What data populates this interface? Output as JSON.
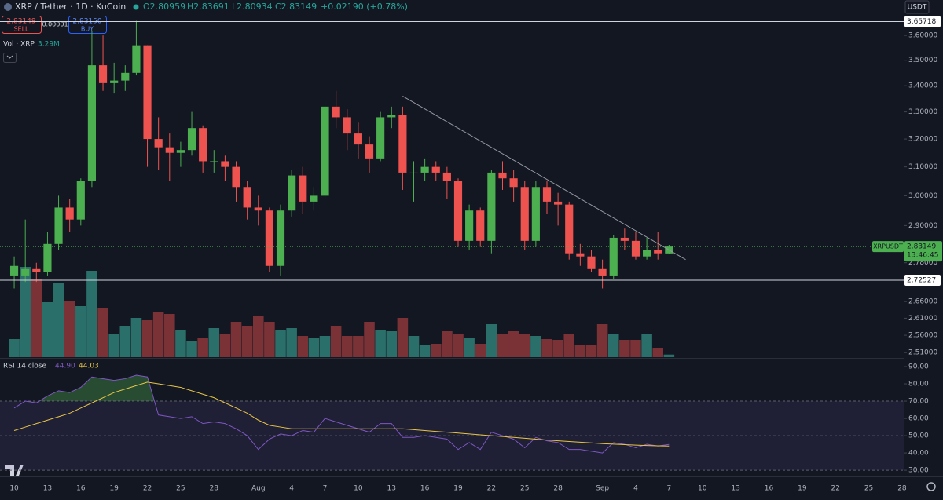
{
  "header": {
    "symbol": "XRP / Tether · 1D · KuCoin",
    "open": "O2.80959",
    "high": "H2.83691",
    "low": "L2.80934",
    "close": "C2.83149",
    "change": "+0.02190 (+0.78%)",
    "sell_price": "2.83149",
    "sell": "SELL",
    "spread": "0.00001",
    "buy_price": "2.83150",
    "buy": "BUY",
    "currency": "USDT"
  },
  "chart_data": [
    {
      "type": "candlestick",
      "categories": [
        "10",
        null,
        null,
        "13",
        null,
        null,
        "16",
        null,
        null,
        "19",
        null,
        null,
        "22",
        null,
        null,
        "25",
        null,
        null,
        "28",
        null,
        null,
        null,
        "Aug",
        null,
        null,
        "4",
        null,
        null,
        "7",
        null,
        null,
        "10",
        null,
        null,
        "13",
        null,
        null,
        "16",
        null,
        null,
        "19",
        null,
        null,
        "22",
        null,
        null,
        "25",
        null,
        null,
        "28",
        null,
        null,
        null,
        "Sep",
        null,
        null,
        "4",
        null,
        null,
        "7",
        null,
        null,
        "10",
        null,
        null,
        "13",
        null,
        null,
        "16",
        null,
        null,
        "19",
        null,
        null,
        "22",
        null,
        null,
        "25",
        null,
        null,
        "28"
      ],
      "open": [
        2.74,
        2.74,
        2.76,
        2.75,
        2.84,
        2.96,
        2.92,
        3.05,
        3.48,
        3.41,
        3.42,
        3.45,
        3.56,
        3.2,
        3.17,
        3.15,
        3.16,
        3.24,
        3.12,
        3.12,
        3.1,
        3.03,
        2.96,
        2.95,
        2.77,
        2.95,
        3.07,
        2.98,
        3.0,
        3.32,
        3.28,
        3.22,
        3.18,
        3.13,
        3.28,
        3.29,
        3.08,
        3.08,
        3.1,
        3.08,
        3.05,
        2.85,
        2.95,
        2.85,
        3.08,
        3.06,
        3.03,
        2.85,
        3.03,
        2.98,
        2.97,
        2.81,
        2.8,
        2.76,
        2.74,
        2.86,
        2.85,
        2.8,
        2.82,
        2.80959,
        null,
        null,
        null,
        null,
        null,
        null,
        null,
        null,
        null,
        null,
        null,
        null,
        null,
        null,
        null,
        null,
        null,
        null,
        null,
        null,
        null
      ],
      "high": [
        2.8,
        2.92,
        2.78,
        2.88,
        3.0,
        2.99,
        3.06,
        3.62,
        3.6,
        3.49,
        3.48,
        3.66,
        3.56,
        3.28,
        3.22,
        3.19,
        3.3,
        3.25,
        3.16,
        3.14,
        3.12,
        3.05,
        3.0,
        2.96,
        2.97,
        3.09,
        3.1,
        3.03,
        3.34,
        3.38,
        3.31,
        3.26,
        3.21,
        3.3,
        3.32,
        3.32,
        3.12,
        3.13,
        3.12,
        3.1,
        3.06,
        2.97,
        2.96,
        3.09,
        3.12,
        3.09,
        3.05,
        3.05,
        3.05,
        3.01,
        2.98,
        2.84,
        2.82,
        2.79,
        2.87,
        2.89,
        2.88,
        2.86,
        2.88,
        2.83691,
        null,
        null,
        null,
        null,
        null,
        null,
        null,
        null,
        null,
        null,
        null,
        null,
        null,
        null,
        null,
        null,
        null,
        null,
        null,
        null,
        null
      ],
      "low": [
        2.7,
        2.72,
        2.72,
        2.74,
        2.82,
        2.88,
        2.9,
        3.03,
        3.38,
        3.37,
        3.38,
        3.44,
        3.1,
        3.09,
        3.05,
        3.1,
        3.14,
        3.08,
        3.08,
        3.05,
        2.98,
        2.92,
        2.9,
        2.75,
        2.74,
        2.93,
        2.94,
        2.95,
        2.99,
        3.24,
        3.16,
        3.13,
        3.08,
        3.12,
        3.24,
        3.02,
        2.98,
        3.05,
        3.05,
        2.99,
        2.83,
        2.82,
        2.83,
        2.81,
        3.02,
        2.98,
        2.82,
        2.83,
        2.94,
        2.9,
        2.79,
        2.77,
        2.75,
        2.7,
        2.73,
        2.82,
        2.79,
        2.79,
        2.79,
        2.80934,
        null,
        null,
        null,
        null,
        null,
        null,
        null,
        null,
        null,
        null,
        null,
        null,
        null,
        null,
        null,
        null,
        null,
        null,
        null,
        null,
        null
      ],
      "close": [
        2.77,
        2.76,
        2.75,
        2.84,
        2.96,
        2.92,
        3.05,
        3.48,
        3.41,
        3.42,
        3.45,
        3.56,
        3.2,
        3.17,
        3.15,
        3.16,
        3.24,
        3.12,
        3.12,
        3.1,
        3.03,
        2.96,
        2.95,
        2.77,
        2.95,
        3.07,
        2.98,
        3.0,
        3.32,
        3.28,
        3.22,
        3.18,
        3.13,
        3.28,
        3.29,
        3.08,
        3.08,
        3.1,
        3.08,
        3.05,
        2.85,
        2.95,
        2.85,
        3.08,
        3.06,
        3.03,
        2.85,
        3.03,
        2.98,
        2.97,
        2.81,
        2.8,
        2.76,
        2.74,
        2.86,
        2.85,
        2.8,
        2.82,
        2.81,
        2.83149,
        null,
        null,
        null,
        null,
        null,
        null,
        null,
        null,
        null,
        null,
        null,
        null,
        null,
        null,
        null,
        null,
        null,
        null,
        null,
        null,
        null
      ],
      "volume": [
        23,
        115,
        100,
        70,
        95,
        72,
        65,
        110,
        62,
        30,
        40,
        50,
        47,
        58,
        55,
        35,
        20,
        25,
        37,
        30,
        45,
        40,
        53,
        45,
        35,
        37,
        27,
        25,
        27,
        40,
        27,
        27,
        45,
        35,
        33,
        50,
        27,
        15,
        17,
        33,
        30,
        25,
        17,
        42,
        30,
        33,
        30,
        27,
        23,
        22,
        30,
        15,
        15,
        42,
        30,
        22,
        22,
        30,
        12,
        3.29,
        null,
        null,
        null,
        null,
        null,
        null,
        null,
        null,
        null,
        null,
        null,
        null,
        null,
        null,
        null,
        null,
        null,
        null,
        null,
        null,
        null
      ],
      "volume_title": "Vol · XRP",
      "volume_last_label": "3.29M",
      "up_color": "#4caf50",
      "down_color": "#ef5350",
      "volume_up_color": "#2a6f6a",
      "volume_down_color": "#7a3236",
      "log_scale": true,
      "grid": false,
      "ylim": [
        2.497,
        3.748
      ],
      "yticks": [
        {
          "value": 3.6,
          "label": "3.60000"
        },
        {
          "value": 3.5,
          "label": "3.50000"
        },
        {
          "value": 3.4,
          "label": "3.40000"
        },
        {
          "value": 3.3,
          "label": "3.30000"
        },
        {
          "value": 3.2,
          "label": "3.20000"
        },
        {
          "value": 3.1,
          "label": "3.10000"
        },
        {
          "value": 3,
          "label": "3.00000"
        },
        {
          "value": 2.9,
          "label": "2.90000"
        },
        {
          "value": 2.78,
          "label": "2.78000"
        },
        {
          "value": 2.66,
          "label": "2.66000"
        },
        {
          "value": 2.61,
          "label": "2.61000"
        },
        {
          "value": 2.56,
          "label": "2.56000"
        },
        {
          "value": 2.51,
          "label": "2.51000"
        }
      ],
      "hlines": [
        {
          "value": 3.65718,
          "label": "3.65718"
        },
        {
          "value": 2.72527,
          "label": "2.72527"
        }
      ],
      "last_price": {
        "name": "XRPUSDT",
        "value": 2.83149,
        "label": "2.83149",
        "countdown": "13:46:45"
      },
      "trendline": {
        "x": [
          35,
          60.5
        ],
        "y": [
          3.36,
          2.79
        ]
      }
    },
    {
      "type": "rsi",
      "title": "RSI 14 close",
      "series": [
        {
          "color": "#7e57c2",
          "value_label": "44.90",
          "values": [
            66,
            70,
            69,
            73,
            76,
            75,
            78,
            84,
            83,
            82,
            83,
            85,
            84,
            62,
            61,
            60,
            61,
            57,
            58,
            57,
            54,
            50,
            42,
            48,
            51,
            50,
            53,
            52,
            60,
            58,
            56,
            54,
            52,
            57,
            57,
            49,
            49,
            50,
            49,
            48,
            42,
            46,
            42,
            52,
            50,
            48,
            43,
            49,
            47,
            46,
            42,
            42,
            41,
            40,
            46,
            45,
            43,
            45,
            44,
            44.9,
            null,
            null,
            null,
            null,
            null,
            null,
            null,
            null,
            null,
            null,
            null,
            null,
            null,
            null,
            null,
            null,
            null,
            null,
            null,
            null,
            null
          ]
        },
        {
          "color": "#e8c547",
          "value_label": "44.03",
          "values": [
            53,
            55,
            57,
            59,
            61,
            63,
            66,
            69,
            72,
            75,
            77,
            79,
            81,
            80,
            79,
            78,
            76,
            74,
            72,
            69,
            66,
            63,
            59,
            56,
            55,
            54,
            54,
            54,
            54,
            54,
            54,
            54,
            54,
            54,
            54,
            54,
            53.5,
            53,
            52.5,
            52,
            51.5,
            51,
            50.5,
            50,
            49.5,
            49,
            48.5,
            48,
            47.5,
            47,
            46.6,
            46.2,
            45.8,
            45.4,
            45.1,
            44.8,
            44.5,
            44.3,
            44.1,
            44.03,
            null,
            null,
            null,
            null,
            null,
            null,
            null,
            null,
            null,
            null,
            null,
            null,
            null,
            null,
            null,
            null,
            null,
            null,
            null,
            null,
            null
          ]
        }
      ],
      "ylim": [
        26.4,
        93.2
      ],
      "yticks": [
        {
          "value": 90,
          "label": "90.00"
        },
        {
          "value": 80,
          "label": "80.00"
        },
        {
          "value": 70,
          "label": "70.00"
        },
        {
          "value": 60,
          "label": "60.00"
        },
        {
          "value": 50,
          "label": "50.00"
        },
        {
          "value": 40,
          "label": "40.00"
        },
        {
          "value": 30,
          "label": "30.00"
        }
      ],
      "band": [
        30,
        70
      ],
      "band_color": "#7e57c2",
      "levels": [
        70,
        50,
        30
      ],
      "overbought_color": "#4caf50"
    }
  ]
}
